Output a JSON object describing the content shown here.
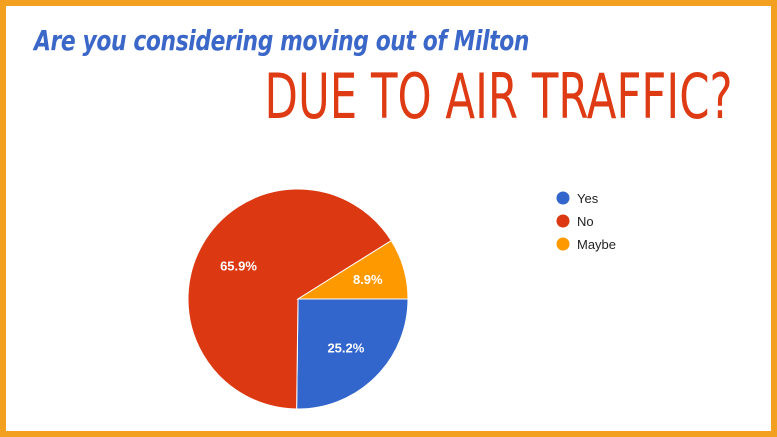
{
  "header": {
    "line1": "Are you considering moving out of Milton",
    "line2": "DUE TO AIR TRAFFIC?"
  },
  "colors": {
    "frame": "#f3a021",
    "title_blue": "#3b67c8",
    "title_red": "#de3a14"
  },
  "chart_data": {
    "type": "pie",
    "title": "",
    "legend_position": "right",
    "slices": [
      {
        "label": "Yes",
        "value": 25.2,
        "display": "25.2%",
        "color": "#3366cc"
      },
      {
        "label": "No",
        "value": 65.9,
        "display": "65.9%",
        "color": "#dc3912"
      },
      {
        "label": "Maybe",
        "value": 8.9,
        "display": "8.9%",
        "color": "#ff9900"
      }
    ]
  }
}
